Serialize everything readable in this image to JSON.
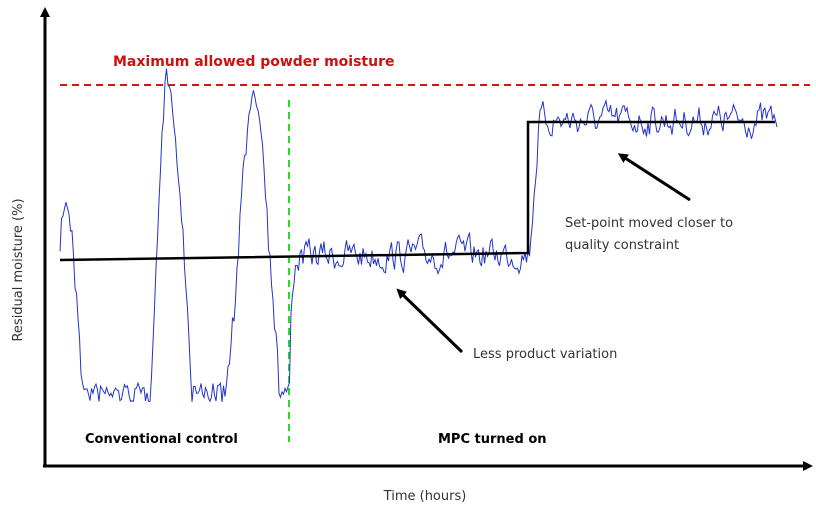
{
  "title": "Maximum  allowed powder moisture",
  "y_axis_label": "Residual moisture  (%)",
  "x_axis_label": "Time (hours)",
  "annotations": {
    "conventional": "Conventional control",
    "mpc": "MPC turned on",
    "setpoint": [
      "Set-point moved closer to",
      "quality constraint"
    ],
    "variation": "Less product variation"
  }
}
